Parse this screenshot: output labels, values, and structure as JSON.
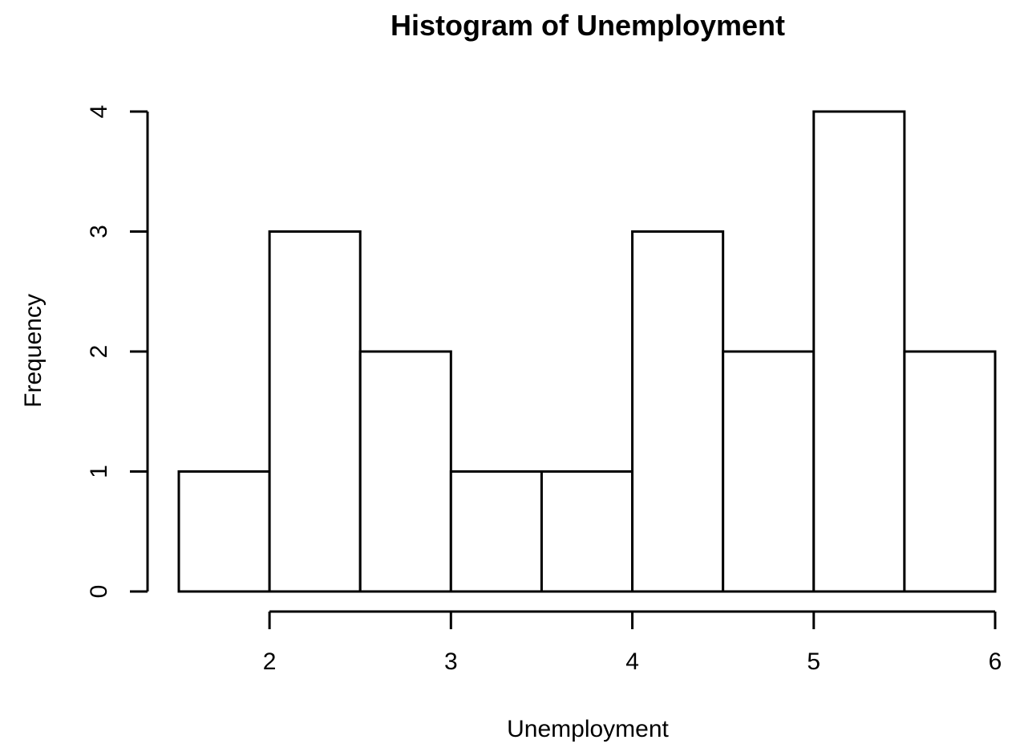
{
  "chart_data": {
    "type": "bar",
    "subtype": "histogram",
    "title": "Histogram of Unemployment",
    "xlabel": "Unemployment",
    "ylabel": "Frequency",
    "bins": [
      {
        "start": 1.5,
        "end": 2.0,
        "count": 1
      },
      {
        "start": 2.0,
        "end": 2.5,
        "count": 3
      },
      {
        "start": 2.5,
        "end": 3.0,
        "count": 2
      },
      {
        "start": 3.0,
        "end": 3.5,
        "count": 1
      },
      {
        "start": 3.5,
        "end": 4.0,
        "count": 1
      },
      {
        "start": 4.0,
        "end": 4.5,
        "count": 3
      },
      {
        "start": 4.5,
        "end": 5.0,
        "count": 2
      },
      {
        "start": 5.0,
        "end": 5.5,
        "count": 4
      },
      {
        "start": 5.5,
        "end": 6.0,
        "count": 2
      }
    ],
    "xticks": [
      "2",
      "3",
      "4",
      "5",
      "6"
    ],
    "yticks": [
      "0",
      "1",
      "2",
      "3",
      "4"
    ],
    "xlim": [
      1.5,
      6.0
    ],
    "ylim": [
      0,
      4
    ],
    "grid": false,
    "bar_fill": "#ffffff",
    "bar_stroke": "#000000"
  }
}
